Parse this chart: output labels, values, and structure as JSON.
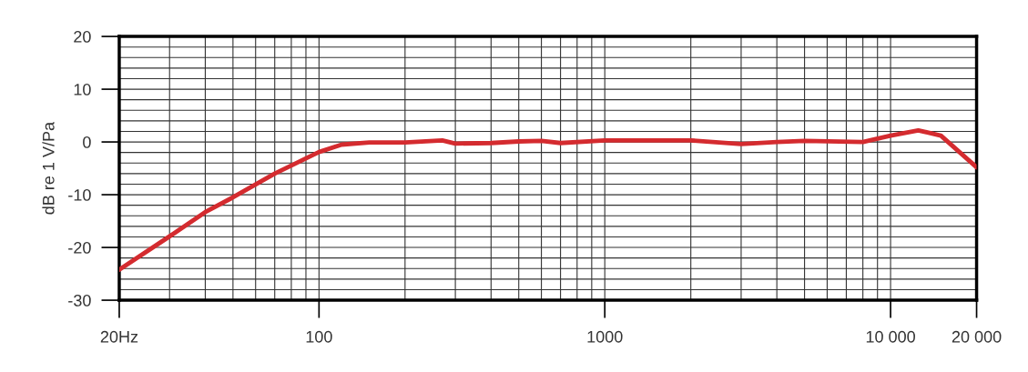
{
  "chart_data": {
    "type": "line",
    "ylabel": "dB re 1 V/Pa",
    "log": "x",
    "grid": true,
    "marker": "none",
    "line_style": "solid",
    "xlim": [
      20,
      20000
    ],
    "ylim": [
      -30,
      20
    ],
    "xticks": [
      {
        "value": 20,
        "label": "20Hz"
      },
      100,
      1000,
      {
        "value": 10000,
        "label": "10 000"
      },
      {
        "value": 20000,
        "label": "20 000"
      }
    ],
    "yticks": [
      -30,
      -20,
      -10,
      0,
      10,
      20
    ],
    "x": [
      20,
      30,
      40,
      50,
      70,
      100,
      120,
      150,
      200,
      270,
      300,
      400,
      500,
      600,
      700,
      1000,
      2000,
      3000,
      4000,
      5000,
      8000,
      10000,
      12500,
      15000,
      20000
    ],
    "series": [
      {
        "color": "#d42b2f",
        "values": [
          -24.2,
          -17.9,
          -13.3,
          -10.5,
          -6.0,
          -1.9,
          -0.5,
          -0.1,
          -0.1,
          0.3,
          -0.3,
          -0.2,
          0.1,
          0.2,
          -0.2,
          0.3,
          0.3,
          -0.4,
          0.0,
          0.2,
          0.0,
          1.2,
          2.2,
          1.2,
          -4.8
        ]
      }
    ]
  }
}
